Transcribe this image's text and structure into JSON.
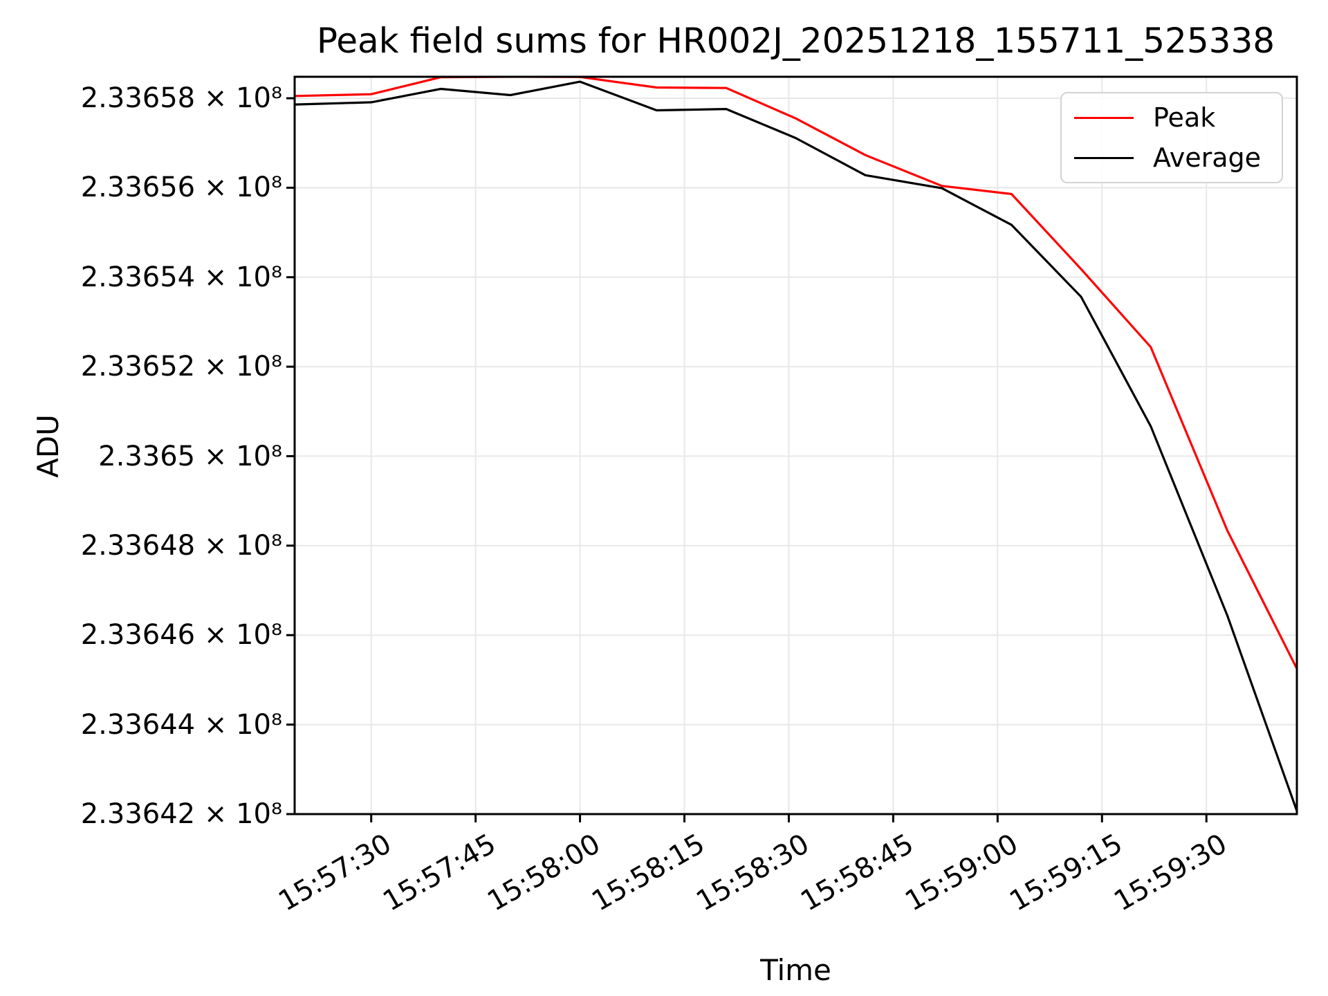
{
  "title": "Peak field sums for HR002J_20251218_155711_525338",
  "axes": {
    "xlabel": "Time",
    "ylabel": "ADU"
  },
  "legend": {
    "position": "upper right"
  },
  "chart_data": {
    "type": "line",
    "title": "Peak field sums for HR002J_20251218_155711_525338",
    "xlabel": "Time",
    "ylabel": "ADU",
    "grid": true,
    "legend_position": "upper right",
    "x": [
      "15:57:19",
      "15:57:30",
      "15:57:40",
      "15:57:50",
      "15:58:00",
      "15:58:11",
      "15:58:21",
      "15:58:31",
      "15:58:41",
      "15:58:52",
      "15:59:02",
      "15:59:12",
      "15:59:22",
      "15:59:33",
      "15:59:43"
    ],
    "series": [
      {
        "name": "Peak",
        "color": "#ff0000",
        "values": [
          233658050,
          233658090,
          233658470,
          233658480,
          233658475,
          233658240,
          233658230,
          233657550,
          233656730,
          233656040,
          233655860,
          233654180,
          233652440,
          233648340,
          233645250
        ]
      },
      {
        "name": "Average",
        "color": "#000000",
        "values": [
          233657860,
          233657910,
          233658210,
          233658070,
          233658370,
          233657730,
          233657760,
          233657110,
          233656280,
          233655990,
          233655170,
          233653560,
          233650670,
          233646440,
          233642070
        ]
      }
    ],
    "xlim": [
      "15:57:19",
      "15:59:43"
    ],
    "ylim": [
      233642000,
      233658480
    ],
    "xticks": [
      "15:57:30",
      "15:57:45",
      "15:58:00",
      "15:58:15",
      "15:58:30",
      "15:58:45",
      "15:59:00",
      "15:59:15",
      "15:59:30"
    ],
    "yticks": [
      {
        "value": 233658000,
        "label": "2.33658 × 10⁸"
      },
      {
        "value": 233656000,
        "label": "2.33656 × 10⁸"
      },
      {
        "value": 233654000,
        "label": "2.33654 × 10⁸"
      },
      {
        "value": 233652000,
        "label": "2.33652 × 10⁸"
      },
      {
        "value": 233650000,
        "label": "2.3365 × 10⁸"
      },
      {
        "value": 233648000,
        "label": "2.33648 × 10⁸"
      },
      {
        "value": 233646000,
        "label": "2.33646 × 10⁸"
      },
      {
        "value": 233644000,
        "label": "2.33644 × 10⁸"
      },
      {
        "value": 233642000,
        "label": "2.33642 × 10⁸"
      }
    ],
    "colors": {
      "grid": "#e8e8e8",
      "spine": "#000000",
      "background": "#ffffff"
    }
  }
}
